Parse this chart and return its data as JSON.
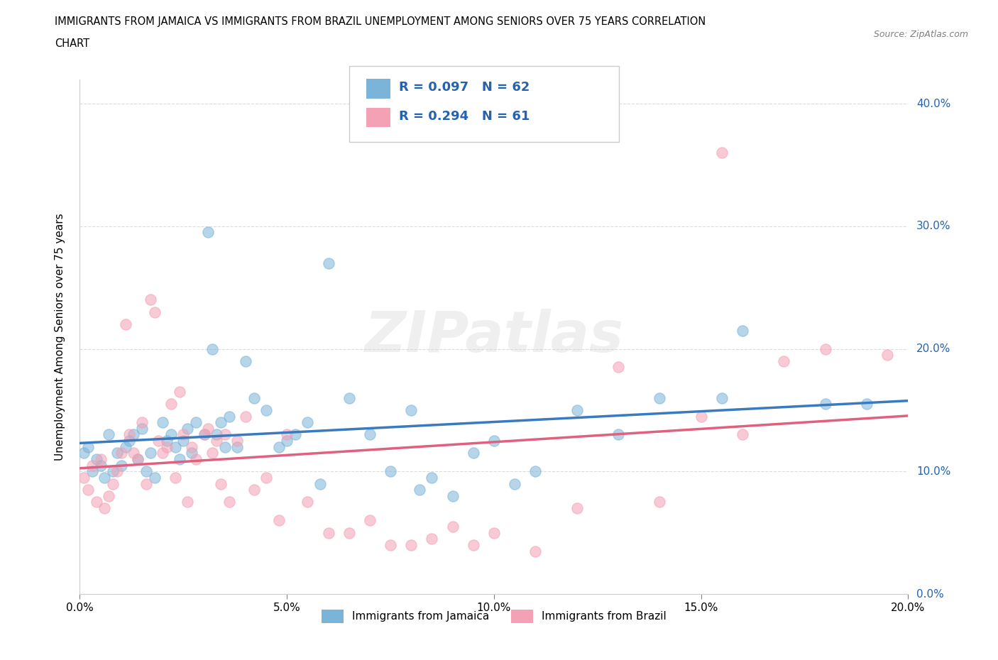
{
  "title_line1": "IMMIGRANTS FROM JAMAICA VS IMMIGRANTS FROM BRAZIL UNEMPLOYMENT AMONG SENIORS OVER 75 YEARS CORRELATION",
  "title_line2": "CHART",
  "source_text": "Source: ZipAtlas.com",
  "ylabel": "Unemployment Among Seniors over 75 years",
  "xlim": [
    0.0,
    0.2
  ],
  "ylim": [
    0.0,
    0.42
  ],
  "xticks": [
    0.0,
    0.05,
    0.1,
    0.15,
    0.2
  ],
  "yticks": [
    0.0,
    0.1,
    0.2,
    0.3,
    0.4
  ],
  "xtick_labels": [
    "0.0%",
    "5.0%",
    "10.0%",
    "15.0%",
    "20.0%"
  ],
  "ytick_labels": [
    "0.0%",
    "10.0%",
    "20.0%",
    "30.0%",
    "40.0%"
  ],
  "jamaica_color": "#7ab4d8",
  "brazil_color": "#f4a0b5",
  "jamaica_label": "Immigrants from Jamaica",
  "brazil_label": "Immigrants from Brazil",
  "R_jamaica": 0.097,
  "N_jamaica": 62,
  "R_brazil": 0.294,
  "N_brazil": 61,
  "legend_text_color": "#2563b0",
  "tick_label_color": "#2563b0",
  "watermark_text": "ZIPatlas",
  "jamaica_x": [
    0.001,
    0.002,
    0.003,
    0.004,
    0.005,
    0.006,
    0.007,
    0.008,
    0.009,
    0.01,
    0.011,
    0.012,
    0.013,
    0.014,
    0.015,
    0.016,
    0.017,
    0.018,
    0.02,
    0.021,
    0.022,
    0.023,
    0.024,
    0.025,
    0.026,
    0.027,
    0.028,
    0.03,
    0.031,
    0.032,
    0.033,
    0.034,
    0.035,
    0.036,
    0.038,
    0.04,
    0.042,
    0.045,
    0.048,
    0.05,
    0.052,
    0.055,
    0.058,
    0.06,
    0.065,
    0.07,
    0.075,
    0.08,
    0.082,
    0.085,
    0.09,
    0.095,
    0.1,
    0.105,
    0.11,
    0.12,
    0.13,
    0.14,
    0.155,
    0.16,
    0.18,
    0.19
  ],
  "jamaica_y": [
    0.115,
    0.12,
    0.1,
    0.11,
    0.105,
    0.095,
    0.13,
    0.1,
    0.115,
    0.105,
    0.12,
    0.125,
    0.13,
    0.11,
    0.135,
    0.1,
    0.115,
    0.095,
    0.14,
    0.125,
    0.13,
    0.12,
    0.11,
    0.125,
    0.135,
    0.115,
    0.14,
    0.13,
    0.295,
    0.2,
    0.13,
    0.14,
    0.12,
    0.145,
    0.12,
    0.19,
    0.16,
    0.15,
    0.12,
    0.125,
    0.13,
    0.14,
    0.09,
    0.27,
    0.16,
    0.13,
    0.1,
    0.15,
    0.085,
    0.095,
    0.08,
    0.115,
    0.125,
    0.09,
    0.1,
    0.15,
    0.13,
    0.16,
    0.16,
    0.215,
    0.155,
    0.155
  ],
  "brazil_x": [
    0.001,
    0.002,
    0.003,
    0.004,
    0.005,
    0.006,
    0.007,
    0.008,
    0.009,
    0.01,
    0.011,
    0.012,
    0.013,
    0.014,
    0.015,
    0.016,
    0.017,
    0.018,
    0.019,
    0.02,
    0.021,
    0.022,
    0.023,
    0.024,
    0.025,
    0.026,
    0.027,
    0.028,
    0.03,
    0.031,
    0.032,
    0.033,
    0.034,
    0.035,
    0.036,
    0.038,
    0.04,
    0.042,
    0.045,
    0.048,
    0.05,
    0.055,
    0.06,
    0.065,
    0.07,
    0.075,
    0.08,
    0.085,
    0.09,
    0.095,
    0.1,
    0.11,
    0.12,
    0.13,
    0.14,
    0.15,
    0.155,
    0.16,
    0.17,
    0.18,
    0.195
  ],
  "brazil_y": [
    0.095,
    0.085,
    0.105,
    0.075,
    0.11,
    0.07,
    0.08,
    0.09,
    0.1,
    0.115,
    0.22,
    0.13,
    0.115,
    0.11,
    0.14,
    0.09,
    0.24,
    0.23,
    0.125,
    0.115,
    0.12,
    0.155,
    0.095,
    0.165,
    0.13,
    0.075,
    0.12,
    0.11,
    0.13,
    0.135,
    0.115,
    0.125,
    0.09,
    0.13,
    0.075,
    0.125,
    0.145,
    0.085,
    0.095,
    0.06,
    0.13,
    0.075,
    0.05,
    0.05,
    0.06,
    0.04,
    0.04,
    0.045,
    0.055,
    0.04,
    0.05,
    0.035,
    0.07,
    0.185,
    0.075,
    0.145,
    0.36,
    0.13,
    0.19,
    0.2,
    0.195
  ]
}
